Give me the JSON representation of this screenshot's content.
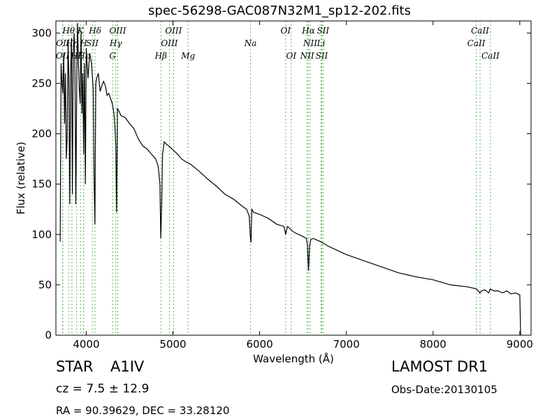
{
  "title": "spec-56298-GAC087N32M1_sp12-202.fits",
  "xlabel": "Wavelength (Å)",
  "ylabel": "Flux (relative)",
  "info": {
    "class_label": "STAR",
    "subclass": "A1IV",
    "redshift": "cz = 7.5 ± 12.9",
    "coords": "RA = 90.39629, DEC = 33.28120",
    "survey": "LAMOST DR1",
    "obs_date": "Obs-Date:20130105"
  },
  "chart_data": {
    "type": "line",
    "xlim": [
      3650,
      9130
    ],
    "ylim": [
      0,
      312
    ],
    "xticks": [
      4000,
      5000,
      6000,
      7000,
      8000,
      9000
    ],
    "yticks": [
      0,
      50,
      100,
      150,
      200,
      250,
      300
    ],
    "grid": false,
    "line_color": "#000000",
    "marker_color": "#5cb85c",
    "series": [
      {
        "x": [
          3700,
          3710,
          3720,
          3730,
          3740,
          3750,
          3760,
          3770,
          3780,
          3790,
          3800,
          3810,
          3820,
          3830,
          3840,
          3850,
          3860,
          3870,
          3880,
          3890,
          3900,
          3910,
          3920,
          3930,
          3940,
          3950,
          3960,
          3970,
          3980,
          3990,
          4000,
          4020,
          4040,
          4060,
          4080,
          4090,
          4100,
          4110,
          4120,
          4140,
          4160,
          4180,
          4200,
          4220,
          4240,
          4260,
          4280,
          4300,
          4320,
          4330,
          4340,
          4350,
          4360,
          4380,
          4400,
          4450,
          4500,
          4550,
          4600,
          4650,
          4700,
          4750,
          4800,
          4830,
          4850,
          4860,
          4870,
          4880,
          4900,
          4920,
          4950,
          5000,
          5050,
          5100,
          5150,
          5200,
          5300,
          5400,
          5500,
          5600,
          5700,
          5800,
          5850,
          5880,
          5890,
          5900,
          5910,
          5930,
          6000,
          6100,
          6200,
          6280,
          6300,
          6320,
          6400,
          6500,
          6540,
          6550,
          6563,
          6575,
          6590,
          6620,
          6700,
          6800,
          6900,
          7000,
          7200,
          7400,
          7600,
          7700,
          7800,
          8000,
          8200,
          8400,
          8500,
          8540,
          8560,
          8600,
          8640,
          8660,
          8700,
          8750,
          8800,
          8850,
          8900,
          8950,
          9000,
          9005,
          9010
        ],
        "y": [
          93,
          270,
          250,
          240,
          280,
          210,
          260,
          175,
          195,
          290,
          255,
          130,
          260,
          295,
          140,
          280,
          300,
          260,
          130,
          250,
          310,
          270,
          245,
          230,
          300,
          220,
          260,
          180,
          270,
          150,
          285,
          255,
          280,
          270,
          245,
          160,
          110,
          250,
          255,
          260,
          242,
          248,
          252,
          248,
          238,
          240,
          235,
          230,
          220,
          208,
          190,
          122,
          225,
          222,
          218,
          216,
          210,
          205,
          195,
          188,
          185,
          180,
          175,
          168,
          150,
          96,
          130,
          180,
          192,
          190,
          188,
          184,
          180,
          175,
          172,
          170,
          163,
          155,
          148,
          140,
          135,
          128,
          125,
          118,
          100,
          92,
          125,
          122,
          120,
          116,
          110,
          108,
          100,
          108,
          102,
          98,
          96,
          90,
          64,
          88,
          95,
          96,
          93,
          88,
          84,
          80,
          74,
          68,
          62,
          60,
          58,
          55,
          50,
          48,
          46,
          42,
          44,
          45,
          42,
          46,
          44,
          44,
          42,
          44,
          41,
          42,
          40,
          20,
          0
        ]
      }
    ],
    "lines": [
      {
        "name": "OII",
        "x": 3727,
        "level": 2
      },
      {
        "name": "OII",
        "x": 3730,
        "level": 1
      },
      {
        "name": "Hθ",
        "x": 3797,
        "level": 0
      },
      {
        "name": "Hη",
        "x": 3835,
        "level": 1
      },
      {
        "name": "Hζ",
        "x": 3889,
        "level": 2
      },
      {
        "name": "K",
        "x": 3934,
        "level": 0
      },
      {
        "name": "H",
        "x": 3969,
        "level": 1
      },
      {
        "name": "Hε",
        "x": 3970,
        "level": 2
      },
      {
        "name": "SII",
        "x": 4070,
        "level": 1
      },
      {
        "name": "Hδ",
        "x": 4102,
        "level": 0
      },
      {
        "name": "G",
        "x": 4304,
        "level": 2
      },
      {
        "name": "Hγ",
        "x": 4341,
        "level": 1
      },
      {
        "name": "OIII",
        "x": 4363,
        "level": 0
      },
      {
        "name": "Hβ",
        "x": 4861,
        "level": 2
      },
      {
        "name": "OIII",
        "x": 4959,
        "level": 1
      },
      {
        "name": "OIII",
        "x": 5007,
        "level": 0
      },
      {
        "name": "Mg",
        "x": 5175,
        "level": 2
      },
      {
        "name": "Na",
        "x": 5894,
        "level": 1
      },
      {
        "name": "OI",
        "x": 6300,
        "level": 0
      },
      {
        "name": "OI",
        "x": 6364,
        "level": 2
      },
      {
        "name": "NII",
        "x": 6548,
        "level": 2
      },
      {
        "name": "Hα",
        "x": 6563,
        "level": 0
      },
      {
        "name": "NII",
        "x": 6583,
        "level": 1
      },
      {
        "name": "Li",
        "x": 6708,
        "level": 1
      },
      {
        "name": "SII",
        "x": 6716,
        "level": 2
      },
      {
        "name": "SII",
        "x": 6731,
        "level": 0
      },
      {
        "name": "CaII",
        "x": 8498,
        "level": 1
      },
      {
        "name": "CaII",
        "x": 8542,
        "level": 0
      },
      {
        "name": "CaII",
        "x": 8662,
        "level": 2
      }
    ]
  }
}
